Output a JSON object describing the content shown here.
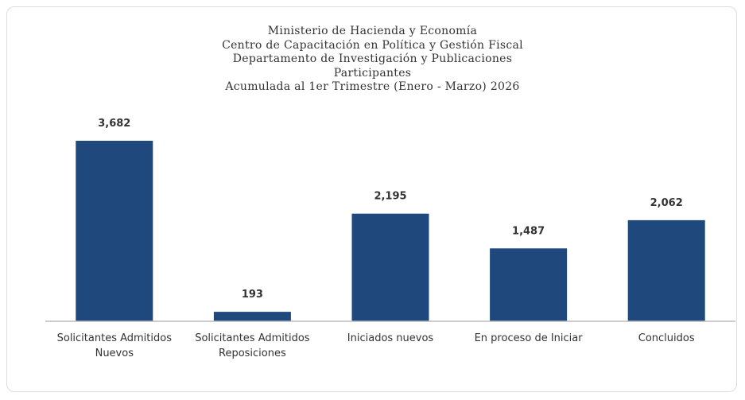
{
  "chart_data": {
    "type": "bar",
    "title": [
      "Ministerio de Hacienda y Economía",
      "Centro de Capacitación en Política y Gestión Fiscal",
      "Departamento de Investigación y Publicaciones",
      "Participantes",
      "Acumulada al 1er Trimestre (Enero - Marzo) 2026"
    ],
    "categories": [
      "Solicitantes Admitidos Nuevos",
      "Solicitantes Admitidos Reposiciones",
      "Iniciados nuevos",
      "En proceso de Iniciar",
      "Concluidos"
    ],
    "values": [
      3682,
      193,
      2195,
      1487,
      2062
    ],
    "value_labels": [
      "3,682",
      "193",
      "2,195",
      "1,487",
      "2,062"
    ],
    "color": "#1f497d"
  }
}
